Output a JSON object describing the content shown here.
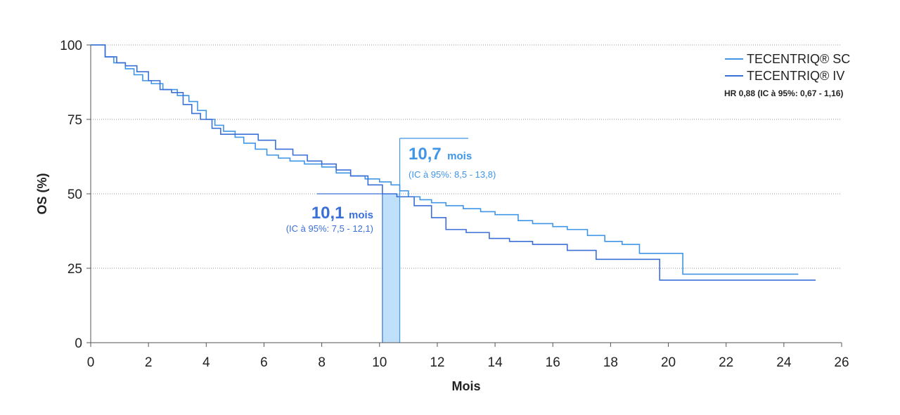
{
  "chart_data": {
    "type": "line",
    "title": "",
    "xlabel": "Mois",
    "ylabel": "OS (%)",
    "xlim": [
      0,
      26
    ],
    "ylim": [
      0,
      100
    ],
    "x_ticks": [
      0,
      2,
      4,
      6,
      8,
      10,
      12,
      14,
      16,
      18,
      20,
      22,
      24,
      26
    ],
    "y_ticks": [
      0,
      25,
      50,
      75,
      100
    ],
    "grid": "dotted horizontal at 50 and 100",
    "legend_position": "top-right",
    "series": [
      {
        "name": "TECENTRIQ® SC",
        "color": "#3f95e6",
        "step": true,
        "x": [
          0,
          0.5,
          0.8,
          1.2,
          1.5,
          1.8,
          2.1,
          2.5,
          3.0,
          3.4,
          3.7,
          4.0,
          4.3,
          4.6,
          5.0,
          5.3,
          5.7,
          6.1,
          6.5,
          6.9,
          7.4,
          8.0,
          8.5,
          9.0,
          9.5,
          10.0,
          10.4,
          10.7,
          11.0,
          11.4,
          11.8,
          12.3,
          12.9,
          13.5,
          14.0,
          14.8,
          15.3,
          16.0,
          16.5,
          17.2,
          17.8,
          18.4,
          19.0,
          20.5,
          24.5
        ],
        "y": [
          100,
          96,
          94,
          92,
          90,
          88,
          87,
          85,
          83,
          81,
          78,
          75,
          73,
          71,
          69,
          67,
          65,
          63,
          62,
          61,
          60,
          59,
          57,
          56,
          55,
          54,
          53,
          51,
          49,
          48,
          47,
          46,
          45,
          44,
          43,
          41,
          40,
          39,
          38,
          36,
          34,
          33,
          30,
          23,
          23
        ]
      },
      {
        "name": "TECENTRIQ® IV",
        "color": "#3b6fd8",
        "step": true,
        "x": [
          0,
          0.5,
          0.9,
          1.2,
          1.6,
          2.0,
          2.4,
          2.8,
          3.2,
          3.5,
          3.8,
          4.2,
          4.5,
          5.0,
          5.8,
          6.4,
          7.0,
          7.5,
          8.0,
          8.5,
          9.0,
          9.6,
          10.1,
          10.6,
          11.2,
          11.8,
          12.3,
          13.0,
          13.8,
          14.5,
          15.3,
          16.5,
          17.5,
          18.5,
          19.7,
          20.5,
          25.1
        ],
        "y": [
          100,
          96,
          94,
          93,
          91,
          88,
          85,
          84,
          80,
          77,
          75,
          72,
          70,
          70,
          68,
          65,
          63,
          61,
          60,
          58,
          56,
          53,
          50,
          49,
          46,
          42,
          38,
          37,
          35,
          34,
          33,
          31,
          28,
          28,
          21,
          21,
          21
        ]
      }
    ],
    "annotations": [
      {
        "series": "TECENTRIQ® IV",
        "median_months": 10.1
      },
      {
        "series": "TECENTRIQ® SC",
        "median_months": 10.7
      }
    ]
  },
  "legend": {
    "items": [
      {
        "label": "TECENTRIQ® SC",
        "color": "#3f95e6"
      },
      {
        "label": "TECENTRIQ® IV",
        "color": "#3b6fd8"
      }
    ],
    "hr_text": "HR 0,88 (IC à 95%: 0,67 - 1,16)"
  },
  "annotations": {
    "sc": {
      "big": "10,7",
      "unit": "mois",
      "ci": "(IC à 95%: 8,5 - 13,8)",
      "color": "#3f95e6"
    },
    "iv": {
      "big": "10,1",
      "unit": "mois",
      "ci": "(IC à 95%: 7,5 - 12,1)",
      "color": "#3b6fd8"
    }
  },
  "colors": {
    "median_band": "#bfe0fb",
    "grid": "#9a9a9a",
    "axis": "#555555"
  }
}
